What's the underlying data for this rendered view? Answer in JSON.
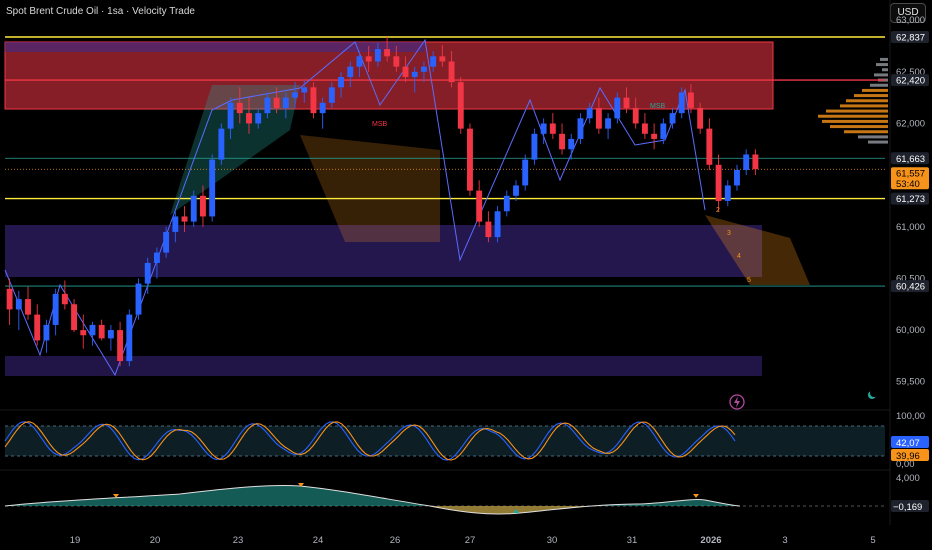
{
  "header": {
    "title": "Spot Brent Crude Oil · 1sa · Velocity Trade",
    "currency": "USD"
  },
  "chart_data": {
    "type": "candlestick",
    "price_axis": {
      "ticks": [
        59500,
        60000,
        60500,
        61000,
        61500,
        62000,
        62500,
        63000
      ],
      "tick_labels": [
        "59,500",
        "60,000",
        "60,500",
        "61,000",
        "61,500",
        "62,000",
        "62,500",
        "63,000"
      ],
      "range": [
        59420,
        63050
      ]
    },
    "x_axis": {
      "labels": [
        "19",
        "20",
        "23",
        "24",
        "26",
        "27",
        "30",
        "31",
        "2026",
        "3",
        "5"
      ]
    },
    "price_badges": [
      {
        "value": 62837,
        "label": "62,837",
        "color": "#1e222d",
        "text_color": "#ffffff"
      },
      {
        "value": 62420,
        "label": "62,420",
        "color": "#1e222d",
        "text_color": "#ffffff"
      },
      {
        "value": 61663,
        "label": "61,663",
        "color": "#1e222d",
        "text_color": "#ffffff"
      },
      {
        "value": 61557,
        "label": "61,557",
        "color": "#f7931a",
        "text_color": "#000000"
      },
      {
        "value": 61273,
        "label": "61,273",
        "color": "#1e222d",
        "text_color": "#ffffff"
      },
      {
        "value": 60426,
        "label": "60,426",
        "color": "#1e222d",
        "text_color": "#ffffff"
      }
    ],
    "countdown": "53:40",
    "levels": [
      {
        "value": 62837,
        "color": "#ffeb3b"
      },
      {
        "value": 62420,
        "color": "#f23645"
      },
      {
        "value": 61273,
        "color": "#ffeb3b"
      },
      {
        "value": 61663,
        "color": "#26a69a"
      },
      {
        "value": 60426,
        "color": "#26a69a"
      }
    ],
    "zones": [
      {
        "type": "supply",
        "from": 62420,
        "to": 62837,
        "color": "#f23645"
      },
      {
        "type": "demand",
        "from": 60550,
        "to": 61050,
        "color": "#3f2a8c"
      },
      {
        "type": "demand",
        "from": 59600,
        "to": 59820,
        "color": "#3f2a8c"
      }
    ],
    "annotations": [
      {
        "text": "MSB",
        "color": "#f23645"
      },
      {
        "text": "MSB",
        "color": "#26a69a"
      },
      {
        "text": "2",
        "color": "#f7931a"
      },
      {
        "text": "3",
        "color": "#f7931a"
      },
      {
        "text": "4",
        "color": "#f7931a"
      },
      {
        "text": "5",
        "color": "#f7931a"
      }
    ],
    "series": {
      "candles": [
        [
          60400,
          60500,
          60050,
          60200
        ],
        [
          60200,
          60380,
          60000,
          60300
        ],
        [
          60300,
          60420,
          60100,
          60150
        ],
        [
          60150,
          60250,
          59850,
          59900
        ],
        [
          59900,
          60100,
          59780,
          60050
        ],
        [
          60050,
          60400,
          59950,
          60350
        ],
        [
          60350,
          60480,
          60200,
          60250
        ],
        [
          60250,
          60300,
          59980,
          60000
        ],
        [
          60000,
          60150,
          59820,
          59950
        ],
        [
          59950,
          60080,
          59850,
          60050
        ],
        [
          60050,
          60100,
          59900,
          59920
        ],
        [
          59920,
          60050,
          59800,
          60000
        ],
        [
          60000,
          60080,
          59650,
          59700
        ],
        [
          59700,
          60200,
          59650,
          60150
        ],
        [
          60150,
          60500,
          60100,
          60450
        ],
        [
          60450,
          60700,
          60350,
          60650
        ],
        [
          60650,
          60800,
          60500,
          60750
        ],
        [
          60750,
          61000,
          60700,
          60950
        ],
        [
          60950,
          61150,
          60850,
          61100
        ],
        [
          61100,
          61200,
          60950,
          61050
        ],
        [
          61050,
          61350,
          61000,
          61300
        ],
        [
          61300,
          61400,
          61000,
          61100
        ],
        [
          61100,
          61700,
          61050,
          61650
        ],
        [
          61650,
          62000,
          61600,
          61950
        ],
        [
          61950,
          62250,
          61850,
          62200
        ],
        [
          62200,
          62350,
          62000,
          62100
        ],
        [
          62100,
          62250,
          61900,
          62000
        ],
        [
          62000,
          62150,
          61950,
          62100
        ],
        [
          62100,
          62300,
          62050,
          62250
        ],
        [
          62250,
          62350,
          62100,
          62150
        ],
        [
          62150,
          62300,
          62050,
          62250
        ],
        [
          62250,
          62400,
          62150,
          62300
        ],
        [
          62300,
          62420,
          62200,
          62350
        ],
        [
          62350,
          62400,
          62050,
          62100
        ],
        [
          62100,
          62250,
          61950,
          62200
        ],
        [
          62200,
          62400,
          62150,
          62350
        ],
        [
          62350,
          62500,
          62250,
          62450
        ],
        [
          62450,
          62600,
          62350,
          62550
        ],
        [
          62550,
          62700,
          62450,
          62650
        ],
        [
          62650,
          62750,
          62500,
          62600
        ],
        [
          62600,
          62780,
          62550,
          62720
        ],
        [
          62720,
          62837,
          62600,
          62650
        ],
        [
          62650,
          62750,
          62500,
          62550
        ],
        [
          62550,
          62650,
          62400,
          62450
        ],
        [
          62450,
          62550,
          62300,
          62500
        ],
        [
          62500,
          62600,
          62400,
          62550
        ],
        [
          62550,
          62700,
          62500,
          62650
        ],
        [
          62650,
          62760,
          62550,
          62600
        ],
        [
          62600,
          62700,
          62350,
          62400
        ],
        [
          62400,
          62450,
          61900,
          61950
        ],
        [
          61950,
          62000,
          61300,
          61350
        ],
        [
          61350,
          61450,
          61000,
          61050
        ],
        [
          61050,
          61150,
          60850,
          60900
        ],
        [
          60900,
          61200,
          60850,
          61150
        ],
        [
          61150,
          61350,
          61100,
          61300
        ],
        [
          61300,
          61450,
          61250,
          61400
        ],
        [
          61400,
          61700,
          61350,
          61650
        ],
        [
          61650,
          61950,
          61600,
          61900
        ],
        [
          61900,
          62050,
          61800,
          62000
        ],
        [
          62000,
          62100,
          61850,
          61900
        ],
        [
          61900,
          62000,
          61700,
          61750
        ],
        [
          61750,
          61900,
          61650,
          61850
        ],
        [
          61850,
          62100,
          61800,
          62050
        ],
        [
          62050,
          62200,
          62000,
          62150
        ],
        [
          62150,
          62250,
          61900,
          61950
        ],
        [
          61950,
          62100,
          61850,
          62050
        ],
        [
          62050,
          62300,
          62000,
          62250
        ],
        [
          62250,
          62350,
          62100,
          62150
        ],
        [
          62150,
          62250,
          61950,
          62000
        ],
        [
          62000,
          62100,
          61850,
          61900
        ],
        [
          61900,
          62000,
          61750,
          61850
        ],
        [
          61850,
          62050,
          61800,
          62000
        ],
        [
          62000,
          62150,
          61950,
          62100
        ],
        [
          62100,
          62350,
          62050,
          62300
        ],
        [
          62300,
          62380,
          62100,
          62150
        ],
        [
          62150,
          62200,
          61900,
          61950
        ],
        [
          61950,
          62050,
          61550,
          61600
        ],
        [
          61600,
          61700,
          61150,
          61250
        ],
        [
          61250,
          61450,
          61200,
          61400
        ],
        [
          61400,
          61600,
          61350,
          61550
        ],
        [
          61550,
          61750,
          61500,
          61700
        ],
        [
          61700,
          61750,
          61500,
          61557
        ]
      ]
    }
  },
  "stoch": {
    "ticks": [
      "100,00",
      "50,00",
      "0,00"
    ],
    "blue_label": "42,07",
    "orange_label": "39,96",
    "blue_color": "#2962ff",
    "orange_color": "#f7931a"
  },
  "osc": {
    "ticks": [
      "4,000"
    ],
    "value_label": "−0,169"
  }
}
